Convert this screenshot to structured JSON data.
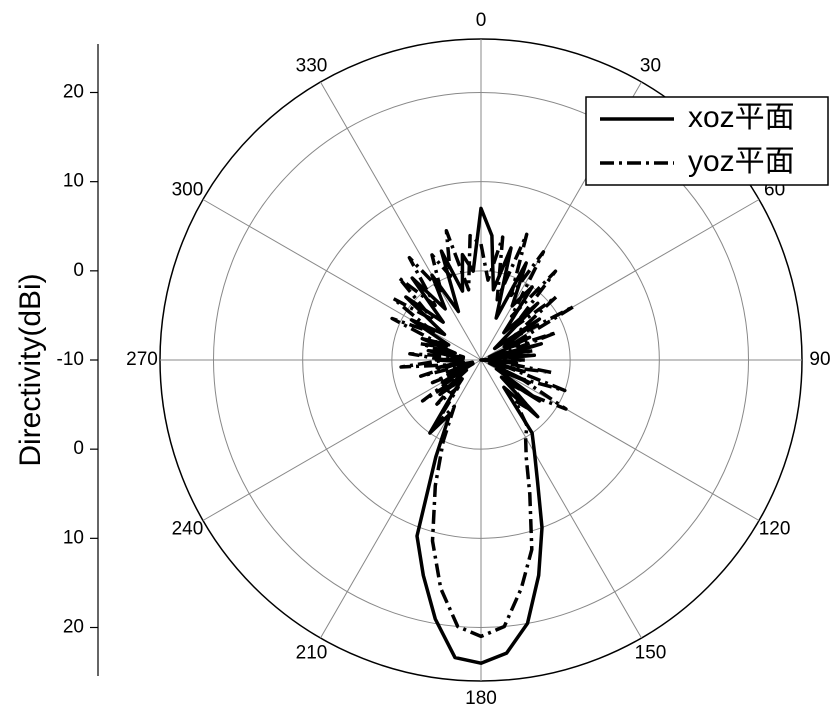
{
  "chart_data": {
    "type": "polar",
    "y_axis_label": "Directivity(dBi)",
    "rlim": [
      -10,
      26
    ],
    "rticks": [
      -10,
      0,
      10,
      20
    ],
    "thetaticks": [
      0,
      30,
      60,
      90,
      120,
      150,
      180,
      210,
      240,
      270,
      300,
      330
    ],
    "theta_direction": "clockwise",
    "theta_zero": "top",
    "grid": true,
    "legend_position": "upper right",
    "theta": [
      0,
      5,
      10,
      15,
      20,
      25,
      30,
      35,
      40,
      45,
      50,
      55,
      60,
      65,
      70,
      75,
      80,
      85,
      90,
      95,
      100,
      105,
      110,
      115,
      120,
      125,
      130,
      135,
      140,
      145,
      150,
      155,
      160,
      165,
      170,
      175,
      180,
      185,
      190,
      195,
      200,
      205,
      210,
      215,
      220,
      225,
      230,
      235,
      240,
      245,
      250,
      255,
      260,
      265,
      270,
      275,
      280,
      285,
      290,
      295,
      300,
      305,
      310,
      315,
      320,
      325,
      330,
      335,
      340,
      345,
      350,
      355
    ],
    "series": [
      {
        "name": "xoz平面",
        "color": "#000000",
        "line_style": "solid",
        "values": [
          7,
          4,
          -2,
          3,
          -5,
          2,
          -3,
          0,
          -6,
          -1,
          -8,
          -2,
          -7,
          -4,
          -9,
          -3,
          -8,
          -4,
          -10,
          -6,
          -9,
          -5,
          -9,
          -4,
          -8,
          -2,
          -7,
          -1,
          -6,
          0,
          2,
          5,
          10,
          15,
          20,
          23,
          24,
          23.5,
          19.5,
          15,
          11,
          2,
          -3,
          0,
          -5,
          -7,
          -4,
          -8,
          -5,
          -9,
          -6,
          -9,
          -5,
          -8,
          -5,
          -8,
          -4,
          -7,
          -3,
          -6,
          -1,
          -5,
          1,
          -4,
          2,
          -3,
          1,
          -4,
          3,
          -2,
          2,
          0
        ]
      },
      {
        "name": "yoz平面",
        "color": "#000000",
        "line_style": "dash-dot",
        "values": [
          3,
          -1,
          4,
          -3,
          5,
          -2,
          4,
          -4,
          3,
          -5,
          1,
          -6,
          2,
          -7,
          -1,
          -8,
          -4,
          -9,
          -5,
          -8,
          -2,
          -7,
          0,
          -5,
          1,
          -3,
          -6,
          -2,
          -4,
          -1,
          0,
          2,
          6,
          12,
          16,
          20,
          21,
          20,
          16,
          11,
          5,
          0,
          -4,
          -1,
          -6,
          -3,
          -7,
          -2,
          -8,
          -4,
          -9,
          -3,
          -7,
          -1,
          -6,
          -2,
          -8,
          -3,
          -6,
          1,
          -4,
          2,
          -3,
          3,
          -2,
          4,
          -1,
          3,
          0,
          5,
          -2,
          4
        ]
      }
    ]
  }
}
